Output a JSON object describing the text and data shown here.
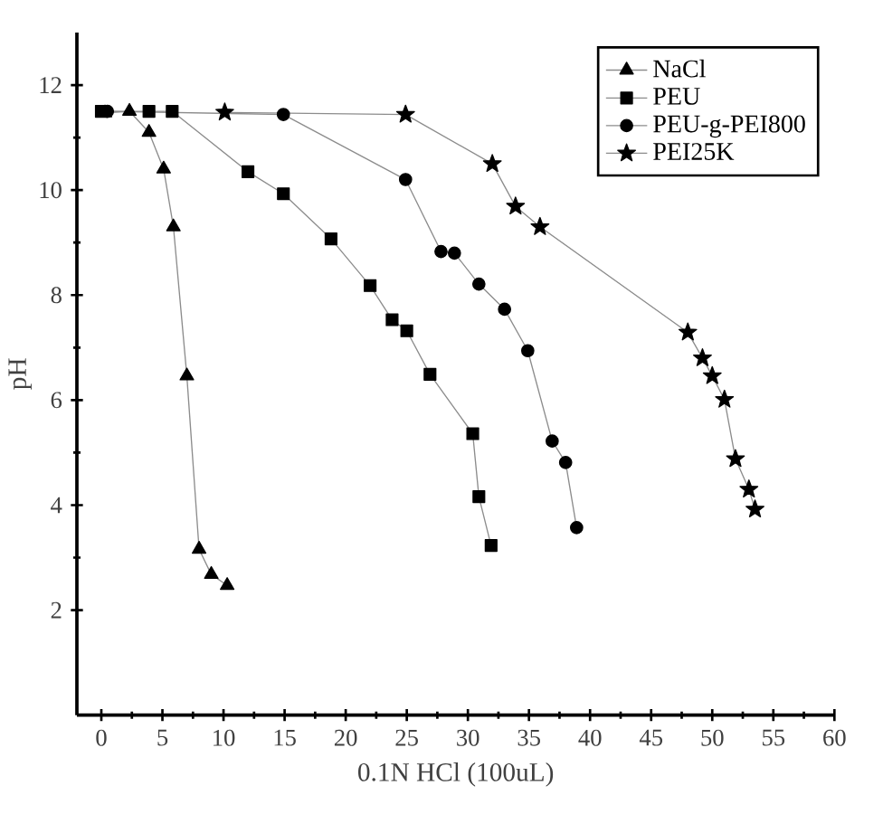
{
  "chart_data": {
    "type": "line",
    "xlabel": "0.1N HCl (100uL)",
    "ylabel": "pH",
    "xlim": [
      -2,
      60
    ],
    "ylim": [
      0,
      13
    ],
    "xticks": [
      0,
      5,
      10,
      15,
      20,
      25,
      30,
      35,
      40,
      45,
      50,
      55,
      60
    ],
    "yticks": [
      2,
      4,
      6,
      8,
      10,
      12
    ],
    "grid": false,
    "legend": "top right",
    "line_style": "solid",
    "series": [
      {
        "name": "NaCl",
        "color": "#000000",
        "marker": "triangle",
        "x": [
          0.3,
          2.3,
          3.9,
          5.1,
          5.9,
          7.0,
          8.0,
          9.0,
          10.3
        ],
        "values": [
          11.47,
          11.5,
          11.1,
          10.4,
          9.3,
          6.46,
          3.16,
          2.68,
          2.47
        ]
      },
      {
        "name": "PEU",
        "color": "#000000",
        "marker": "square",
        "x": [
          0.0,
          3.9,
          5.8,
          12.0,
          14.9,
          18.8,
          22.0,
          23.8,
          25.0,
          26.9,
          30.4,
          30.9,
          31.9
        ],
        "values": [
          11.5,
          11.5,
          11.5,
          10.35,
          9.93,
          9.07,
          8.18,
          7.53,
          7.32,
          6.49,
          5.36,
          4.16,
          3.23
        ]
      },
      {
        "name": "PEU-g-PEI800",
        "color": "#000000",
        "marker": "circle",
        "x": [
          0.5,
          14.9,
          24.9,
          27.8,
          28.9,
          30.9,
          33.0,
          34.9,
          36.9,
          38.0,
          38.9
        ],
        "values": [
          11.5,
          11.44,
          10.2,
          8.83,
          8.8,
          8.21,
          7.73,
          6.94,
          5.22,
          4.81,
          3.57
        ]
      },
      {
        "name": "PEI25K",
        "color": "#000000",
        "marker": "star",
        "x": [
          10.1,
          24.9,
          32.0,
          33.9,
          35.9,
          48.0,
          49.2,
          50.0,
          51.0,
          51.9,
          53.0,
          53.5
        ],
        "values": [
          11.48,
          11.44,
          10.5,
          9.69,
          9.3,
          7.29,
          6.8,
          6.46,
          6.01,
          4.88,
          4.3,
          3.92
        ]
      }
    ]
  }
}
